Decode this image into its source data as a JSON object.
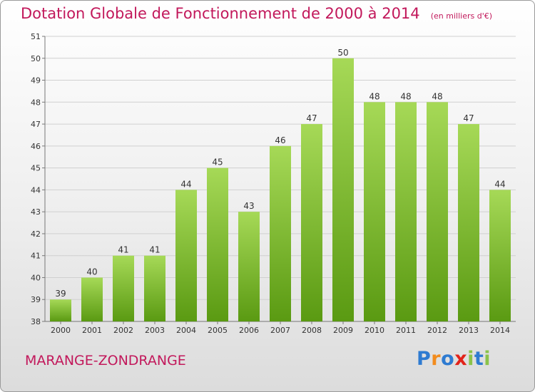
{
  "header": {
    "title": "Dotation Globale de Fonctionnement de 2000 à 2014",
    "unit": "(en milliers d'€)"
  },
  "footer": {
    "city": "MARANGE-ZONDRANGE",
    "logo_letters": [
      "P",
      "r",
      "o",
      "x",
      "i",
      "t",
      "i"
    ],
    "logo_colors": [
      "#2e7bd1",
      "#f28c1e",
      "#2e7bd1",
      "#e2231a",
      "#8bc34a",
      "#2e7bd1",
      "#8bc34a"
    ]
  },
  "colors": {
    "title": "#c2185b",
    "bar_top": "#a6d957",
    "bar_bottom": "#5a9a12",
    "grid": "#d0d0d0",
    "axis_text": "#333333"
  },
  "chart_data": {
    "type": "bar",
    "categories": [
      "2000",
      "2001",
      "2002",
      "2003",
      "2004",
      "2005",
      "2006",
      "2007",
      "2008",
      "2009",
      "2010",
      "2011",
      "2012",
      "2013",
      "2014"
    ],
    "values": [
      39,
      40,
      41,
      41,
      44,
      45,
      43,
      46,
      47,
      50,
      48,
      48,
      48,
      47,
      44
    ],
    "ylim": [
      38,
      51
    ],
    "yticks": [
      38,
      39,
      40,
      41,
      42,
      43,
      44,
      45,
      46,
      47,
      48,
      49,
      50,
      51
    ],
    "grid": "horizontal",
    "legend": "none"
  }
}
